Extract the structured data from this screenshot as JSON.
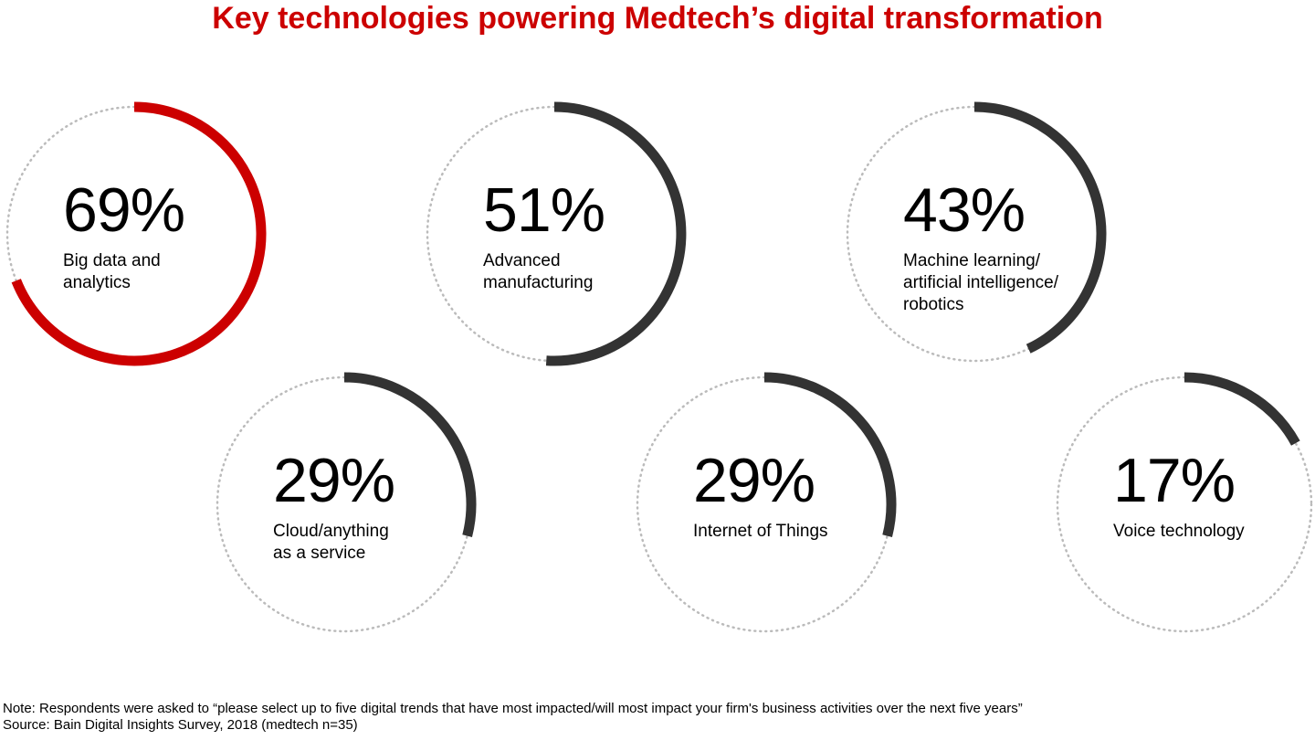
{
  "title": "Key technologies powering Medtech’s digital transformation",
  "colors": {
    "title": "#cc0000",
    "highlight": "#cc0000",
    "arc": "#333333",
    "track": "#bbbbbb"
  },
  "chart_data": {
    "type": "pie",
    "items": [
      {
        "value_label": "69%",
        "value": 69,
        "label_lines": [
          "Big data and",
          "analytics"
        ],
        "highlight": true
      },
      {
        "value_label": "51%",
        "value": 51,
        "label_lines": [
          "Advanced",
          "manufacturing"
        ],
        "highlight": false
      },
      {
        "value_label": "43%",
        "value": 43,
        "label_lines": [
          "Machine learning/",
          "artificial intelligence/",
          "robotics"
        ],
        "highlight": false
      },
      {
        "value_label": "29%",
        "value": 29,
        "label_lines": [
          "Cloud/anything",
          "as a service"
        ],
        "highlight": false
      },
      {
        "value_label": "29%",
        "value": 29,
        "label_lines": [
          "Internet of Things"
        ],
        "highlight": false
      },
      {
        "value_label": "17%",
        "value": 17,
        "label_lines": [
          "Voice technology"
        ],
        "highlight": false
      }
    ]
  },
  "footer": {
    "note": "Note: Respondents were asked to “please select up to five digital trends that have most impacted/will most impact your firm's business activities over the next five years”",
    "source": "Source: Bain Digital Insights Survey, 2018 (medtech n=35)"
  }
}
